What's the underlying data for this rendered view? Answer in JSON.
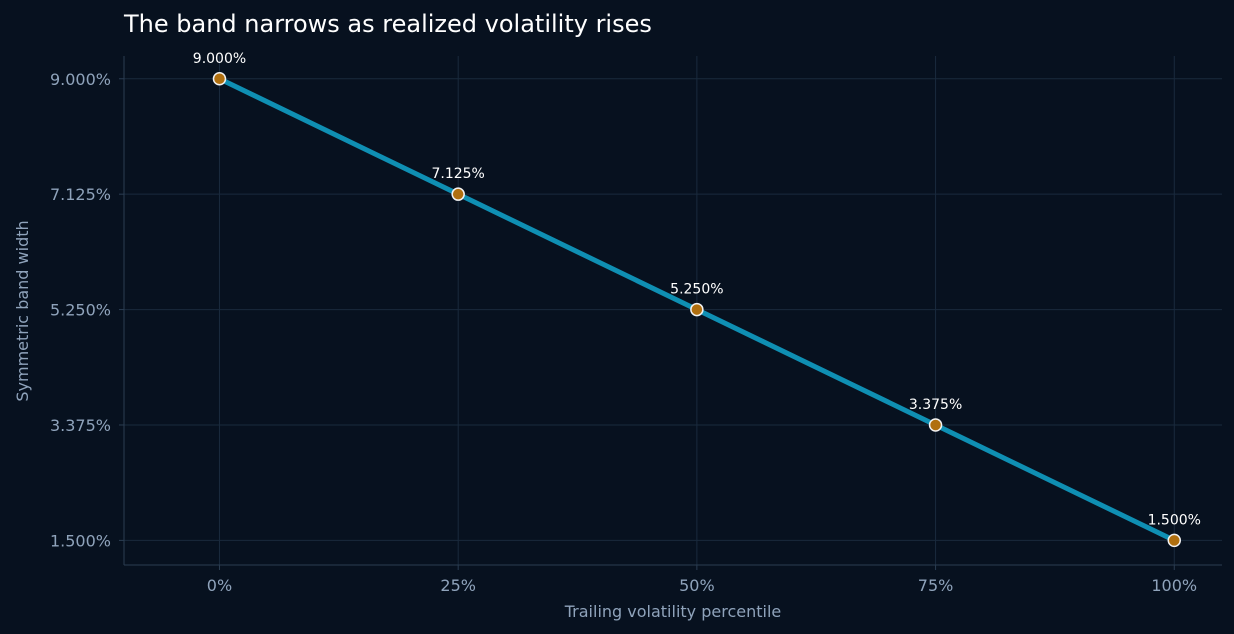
{
  "chart_data": {
    "type": "line",
    "title": "The band narrows as realized volatility rises",
    "xlabel": "Trailing volatility percentile",
    "ylabel": "Symmetric band width",
    "x": [
      0,
      25,
      50,
      75,
      100
    ],
    "x_tick_labels": [
      "0%",
      "25%",
      "50%",
      "75%",
      "100%"
    ],
    "xlim": [
      -10,
      105
    ],
    "y_ticks": [
      1.5,
      3.375,
      5.25,
      7.125,
      9.0
    ],
    "y_tick_labels": [
      "1.500%",
      "3.375%",
      "5.250%",
      "7.125%",
      "9.000%"
    ],
    "ylim": [
      1.1,
      9.37
    ],
    "series": [
      {
        "values": [
          9.0,
          7.125,
          5.25,
          3.375,
          1.5
        ],
        "data_labels": [
          "9.000%",
          "7.125%",
          "5.250%",
          "3.375%",
          "1.500%"
        ]
      }
    ],
    "grid": true,
    "legend": "none",
    "colors": {
      "background": "#07111f",
      "grid": "#1a2a3d",
      "axis": "#2b3d52",
      "line": "#0f8fb3",
      "marker_fill": "#b06f0f",
      "marker_stroke": "#f2f2f2",
      "text": "#8fa3bb",
      "title": "#ffffff",
      "data_label": "#ffffff"
    }
  }
}
